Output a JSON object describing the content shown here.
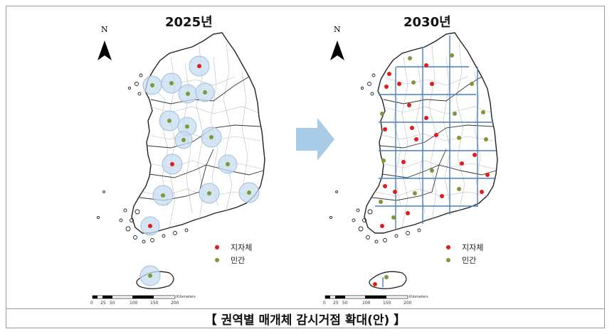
{
  "maps": [
    {
      "year": "2025년",
      "north_label": "N",
      "legend": [
        {
          "label": "지자체",
          "color": "#e31a1c"
        },
        {
          "label": "민간",
          "color": "#7a9a3a"
        }
      ],
      "scale": {
        "ticks": [
          "0",
          "25",
          "50",
          "100",
          "150",
          "200"
        ],
        "unit": "Kilometers"
      },
      "coverage": "circles"
    },
    {
      "year": "2030년",
      "north_label": "N",
      "legend": [
        {
          "label": "지자체",
          "color": "#e31a1c"
        },
        {
          "label": "민간",
          "color": "#7a9a3a"
        }
      ],
      "scale": {
        "ticks": [
          "0",
          "25",
          "50",
          "100",
          "150",
          "200"
        ],
        "unit": "Kilometers"
      },
      "coverage": "grid"
    }
  ],
  "caption": "【 권역별 매개체 감시거점 확대(안) 】",
  "colors": {
    "circle_fill": "#c8dcf0",
    "circle_stroke": "#9fbfe0",
    "grid": "#4a7fc0",
    "arrow": "#a8cce8"
  }
}
